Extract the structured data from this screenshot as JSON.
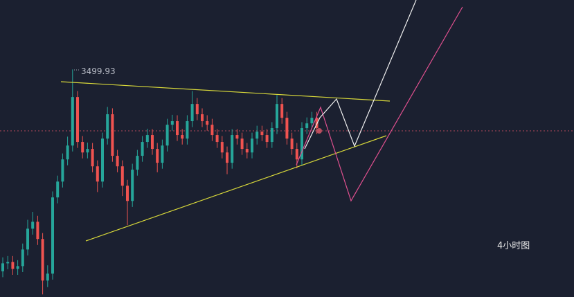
{
  "chart_data": {
    "type": "candlestick",
    "annotation": "4小时图",
    "up_color": "#26a69a",
    "down_color": "#ef5350",
    "ylim": [
      3385,
      3535
    ],
    "open": [
      3398,
      3402,
      3402.7,
      3399.2,
      3400.6,
      3409,
      3419.5,
      3423,
      3414.3,
      3393.3,
      3396.8,
      3435.3,
      3443.3,
      3454.5,
      3461.5,
      3486,
      3463.3,
      3458,
      3459.8,
      3451,
      3443.3,
      3465,
      3477.3,
      3456.3,
      3451,
      3441.2,
      3433.5,
      3449.3,
      3456.3,
      3463.3,
      3466.8,
      3459.8,
      3452.8,
      3461.5,
      3472,
      3473.8,
      3466.8,
      3465,
      3473.8,
      3482.5,
      3477.3,
      3473.8,
      3472,
      3466.8,
      3463.3,
      3458,
      3452.8,
      3466.8,
      3465,
      3459.8,
      3458,
      3465,
      3468.5,
      3466.8,
      3463.3,
      3470.3,
      3482.5,
      3475.5,
      3465,
      3459.8,
      3454.5,
      3470.3,
      3472.7,
      3475.5
    ],
    "high": [
      3405,
      3405.7,
      3405.7,
      3403.6,
      3412,
      3424,
      3428,
      3426,
      3417.3,
      3401,
      3438.3,
      3446.3,
      3457.5,
      3466,
      3499.93,
      3489,
      3466.3,
      3463,
      3462.8,
      3454,
      3468,
      3481,
      3480.3,
      3459.3,
      3454,
      3444.2,
      3452.3,
      3459.3,
      3466.3,
      3470,
      3469.8,
      3462.8,
      3464.5,
      3475,
      3477,
      3476.8,
      3469.8,
      3476.8,
      3489,
      3485.5,
      3480.3,
      3476.8,
      3475,
      3469.8,
      3466.3,
      3461,
      3469.8,
      3469.8,
      3468,
      3462.8,
      3468,
      3471.5,
      3471.5,
      3469.8,
      3473.3,
      3487,
      3485.5,
      3478.5,
      3468,
      3462.8,
      3473.3,
      3475.7,
      3478.5,
      3478.5
    ],
    "low": [
      3395,
      3399,
      3396.2,
      3396.2,
      3397.6,
      3406,
      3416.5,
      3411.3,
      3386.3,
      3390,
      3393.8,
      3432.3,
      3440.3,
      3451.5,
      3458.5,
      3460.3,
      3455,
      3455,
      3448,
      3438,
      3440.3,
      3462,
      3453.3,
      3448,
      3436,
      3421.3,
      3430.5,
      3446.3,
      3453.3,
      3460.3,
      3456.8,
      3448,
      3449.8,
      3458.5,
      3469,
      3463.8,
      3462,
      3462,
      3470.8,
      3474.3,
      3470.8,
      3469,
      3463.8,
      3460.3,
      3455,
      3447,
      3449.8,
      3462,
      3456.8,
      3455,
      3455,
      3462,
      3463.8,
      3460.3,
      3460.3,
      3467.3,
      3472.5,
      3462,
      3456.8,
      3450,
      3451.5,
      3467.3,
      3469.7,
      3467.3
    ],
    "close": [
      3402,
      3402.7,
      3399.2,
      3400.6,
      3409,
      3419.5,
      3423,
      3414.3,
      3393.3,
      3396.8,
      3435.3,
      3443.3,
      3454.5,
      3461.5,
      3486,
      3463.3,
      3458,
      3459.8,
      3451,
      3443.3,
      3465,
      3477.3,
      3456.3,
      3451,
      3441.2,
      3433.5,
      3449.3,
      3456.3,
      3463.3,
      3466.8,
      3459.8,
      3452.8,
      3461.5,
      3472,
      3473.8,
      3466.8,
      3465,
      3473.8,
      3482.5,
      3477.3,
      3473.8,
      3472,
      3466.8,
      3463.3,
      3458,
      3452.8,
      3466.8,
      3465,
      3459.8,
      3458,
      3465,
      3468.5,
      3466.8,
      3463.3,
      3470.3,
      3482.5,
      3475.5,
      3465,
      3459.8,
      3454.5,
      3470.3,
      3472.7,
      3475.5,
      3470.3
    ]
  }
}
